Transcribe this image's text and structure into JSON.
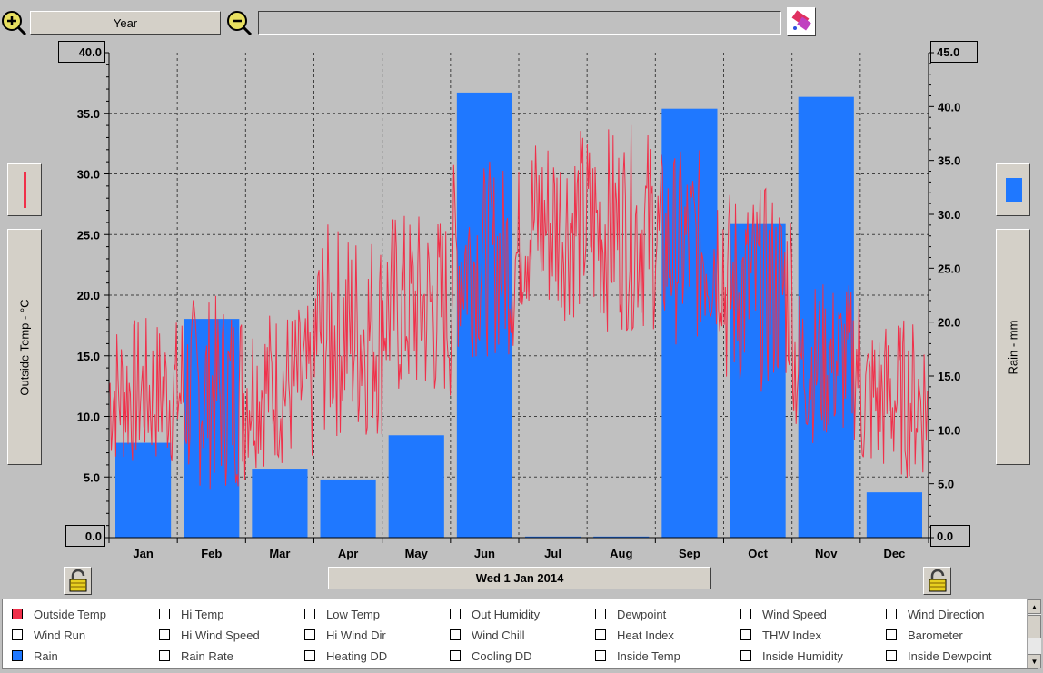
{
  "toolbar": {
    "zoom_in_icon": "zoom-in-icon",
    "period_label": "Year",
    "zoom_out_icon": "zoom-out-icon",
    "status_text": "",
    "eraser_icon": "eraser-icon"
  },
  "date_label": "Wed 1 Jan 2014",
  "left_axis_label": "Outside Temp - °C",
  "right_axis_label": "Rain - mm",
  "colors": {
    "temp": "#f0304a",
    "rain": "#1f78ff",
    "background": "#c0c0c0"
  },
  "chart_data": {
    "type": "bar",
    "categories": [
      "Jan",
      "Feb",
      "Mar",
      "Apr",
      "May",
      "Jun",
      "Jul",
      "Aug",
      "Sep",
      "Oct",
      "Nov",
      "Dec"
    ],
    "left_axis": {
      "label": "Outside Temp - °C",
      "ylim": [
        0,
        40
      ],
      "ticks": [
        "0.0",
        "5.0",
        "10.0",
        "15.0",
        "20.0",
        "25.0",
        "30.0",
        "35.0",
        "40.0"
      ],
      "top_value": "40.0",
      "bottom_value": "0.0"
    },
    "right_axis": {
      "label": "Rain - mm",
      "ylim": [
        0,
        45
      ],
      "ticks": [
        "0.0",
        "5.0",
        "10.0",
        "15.0",
        "20.0",
        "25.0",
        "30.0",
        "35.0",
        "40.0",
        "45.0"
      ],
      "top_value": "45.0",
      "bottom_value": "0.0"
    },
    "grid": true,
    "series": [
      {
        "name": "Rain",
        "axis": "right",
        "type": "bar",
        "values": [
          8.8,
          20.3,
          6.4,
          5.4,
          9.5,
          41.3,
          0.1,
          0.1,
          39.8,
          29.1,
          40.9,
          4.2
        ]
      },
      {
        "name": "Outside Temp",
        "axis": "left",
        "type": "line",
        "monthly_low": [
          5,
          3,
          5,
          7,
          10,
          14,
          17,
          16,
          15,
          11,
          7,
          4
        ],
        "monthly_high": [
          19,
          21,
          20,
          27,
          28,
          32,
          35,
          35,
          33,
          30,
          22,
          19
        ]
      }
    ]
  },
  "legend": {
    "rows": [
      [
        "Outside Temp",
        "Hi Temp",
        "Low Temp",
        "Out Humidity",
        "Dewpoint",
        "Wind Speed",
        "Wind Direction"
      ],
      [
        "Wind Run",
        "Hi Wind Speed",
        "Hi Wind Dir",
        "Wind Chill",
        "Heat Index",
        "THW Index",
        "Barometer"
      ],
      [
        "Rain",
        "Rain Rate",
        "Heating DD",
        "Cooling DD",
        "Inside Temp",
        "Inside Humidity",
        "Inside Dewpoint"
      ]
    ],
    "checked": {
      "Outside Temp": "#f0304a",
      "Rain": "#1f78ff"
    }
  }
}
